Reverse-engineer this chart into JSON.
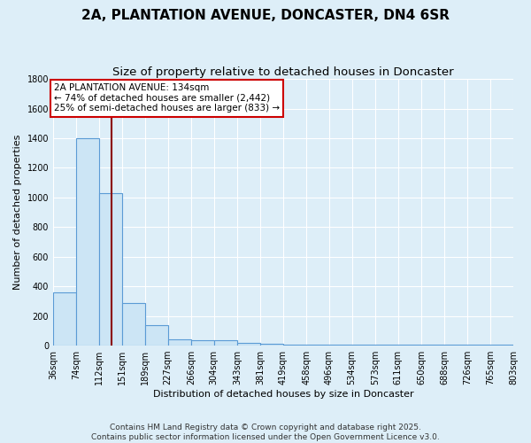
{
  "title": "2A, PLANTATION AVENUE, DONCASTER, DN4 6SR",
  "subtitle": "Size of property relative to detached houses in Doncaster",
  "xlabel": "Distribution of detached houses by size in Doncaster",
  "ylabel": "Number of detached properties",
  "bin_edges": [
    36,
    74,
    112,
    151,
    189,
    227,
    266,
    304,
    343,
    381,
    419,
    458,
    496,
    534,
    573,
    611,
    650,
    688,
    726,
    765,
    803
  ],
  "bar_heights": [
    360,
    1400,
    1030,
    290,
    140,
    45,
    35,
    35,
    20,
    15,
    5,
    5,
    5,
    5,
    5,
    5,
    5,
    5,
    5,
    5
  ],
  "bar_color": "#cce5f5",
  "bar_edge_color": "#5b9bd5",
  "property_size": 134,
  "vline_color": "#8b0000",
  "ylim": [
    0,
    1800
  ],
  "yticks": [
    0,
    200,
    400,
    600,
    800,
    1000,
    1200,
    1400,
    1600,
    1800
  ],
  "annotation_text": "2A PLANTATION AVENUE: 134sqm\n← 74% of detached houses are smaller (2,442)\n25% of semi-detached houses are larger (833) →",
  "annotation_box_color": "#ffffff",
  "annotation_box_edge_color": "#cc0000",
  "footer_line1": "Contains HM Land Registry data © Crown copyright and database right 2025.",
  "footer_line2": "Contains public sector information licensed under the Open Government Licence v3.0.",
  "background_color": "#ddeef8",
  "plot_bg_color": "#ddeef8",
  "grid_color": "#ffffff",
  "title_fontsize": 11,
  "subtitle_fontsize": 9.5,
  "axis_label_fontsize": 8,
  "tick_fontsize": 7,
  "annotation_fontsize": 7.5,
  "footer_fontsize": 6.5
}
